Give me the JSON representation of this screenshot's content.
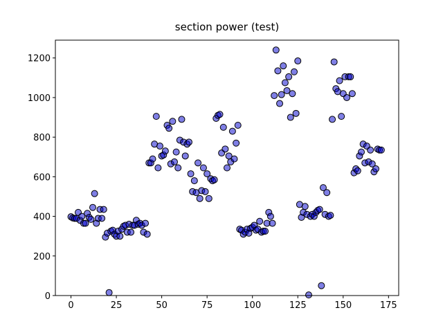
{
  "chart_data": {
    "type": "scatter",
    "title": "section power (test)",
    "x": [
      0,
      1,
      2,
      3,
      4,
      5,
      6,
      7,
      8,
      9,
      10,
      11,
      12,
      13,
      14,
      15,
      16,
      17,
      18,
      19,
      20,
      21,
      22,
      23,
      24,
      25,
      26,
      27,
      28,
      29,
      30,
      31,
      32,
      33,
      34,
      35,
      36,
      37,
      38,
      39,
      40,
      41,
      42,
      43,
      44,
      45,
      46,
      47,
      48,
      49,
      50,
      51,
      52,
      53,
      54,
      55,
      56,
      57,
      58,
      59,
      60,
      61,
      62,
      63,
      64,
      65,
      66,
      67,
      68,
      69,
      70,
      71,
      72,
      73,
      74,
      75,
      76,
      77,
      78,
      79,
      80,
      81,
      82,
      83,
      84,
      85,
      86,
      87,
      88,
      89,
      90,
      91,
      92,
      93,
      94,
      95,
      96,
      97,
      98,
      99,
      100,
      101,
      102,
      103,
      104,
      105,
      106,
      107,
      108,
      109,
      110,
      111,
      112,
      113,
      114,
      115,
      116,
      117,
      118,
      119,
      120,
      121,
      122,
      123,
      124,
      125,
      126,
      127,
      128,
      129,
      130,
      131,
      132,
      133,
      134,
      135,
      136,
      137,
      138,
      139,
      140,
      141,
      142,
      143,
      144,
      145,
      146,
      147,
      148,
      149,
      150,
      151,
      152,
      153,
      154,
      155,
      156,
      157,
      158,
      159,
      160,
      161,
      162,
      163,
      164,
      165,
      166,
      167,
      168,
      169,
      170,
      171
    ],
    "values": [
      398,
      392,
      390,
      390,
      420,
      380,
      400,
      365,
      365,
      415,
      395,
      385,
      445,
      515,
      365,
      390,
      435,
      390,
      435,
      295,
      315,
      15,
      325,
      330,
      310,
      300,
      325,
      300,
      335,
      350,
      355,
      320,
      360,
      320,
      355,
      355,
      380,
      360,
      365,
      355,
      320,
      365,
      310,
      670,
      670,
      690,
      765,
      905,
      645,
      755,
      705,
      710,
      730,
      860,
      845,
      665,
      880,
      675,
      725,
      645,
      785,
      890,
      775,
      705,
      765,
      775,
      615,
      525,
      580,
      520,
      670,
      490,
      530,
      645,
      525,
      615,
      490,
      590,
      580,
      585,
      895,
      910,
      915,
      720,
      850,
      740,
      645,
      705,
      675,
      830,
      690,
      770,
      860,
      335,
      330,
      310,
      320,
      335,
      315,
      340,
      345,
      355,
      330,
      335,
      375,
      320,
      325,
      325,
      365,
      420,
      400,
      365,
      1010,
      1240,
      1135,
      970,
      1015,
      1160,
      1075,
      1035,
      1105,
      900,
      1020,
      1130,
      920,
      1185,
      460,
      395,
      420,
      450,
      410,
      3,
      400,
      410,
      400,
      420,
      430,
      435,
      50,
      545,
      410,
      520,
      400,
      405,
      890,
      1180,
      1045,
      1030,
      1085,
      905,
      1020,
      1105,
      1000,
      1105,
      1105,
      1020,
      620,
      640,
      630,
      705,
      725,
      765,
      670,
      755,
      675,
      735,
      665,
      625,
      640,
      740,
      735,
      735
    ],
    "color": "#0000cc",
    "xlim": [
      -8.6,
      180.6
    ],
    "ylim": [
      0,
      1290
    ],
    "xticks": [
      0,
      25,
      50,
      75,
      100,
      125,
      150,
      175
    ],
    "yticks": [
      0,
      200,
      400,
      600,
      800,
      1000,
      1200
    ]
  }
}
